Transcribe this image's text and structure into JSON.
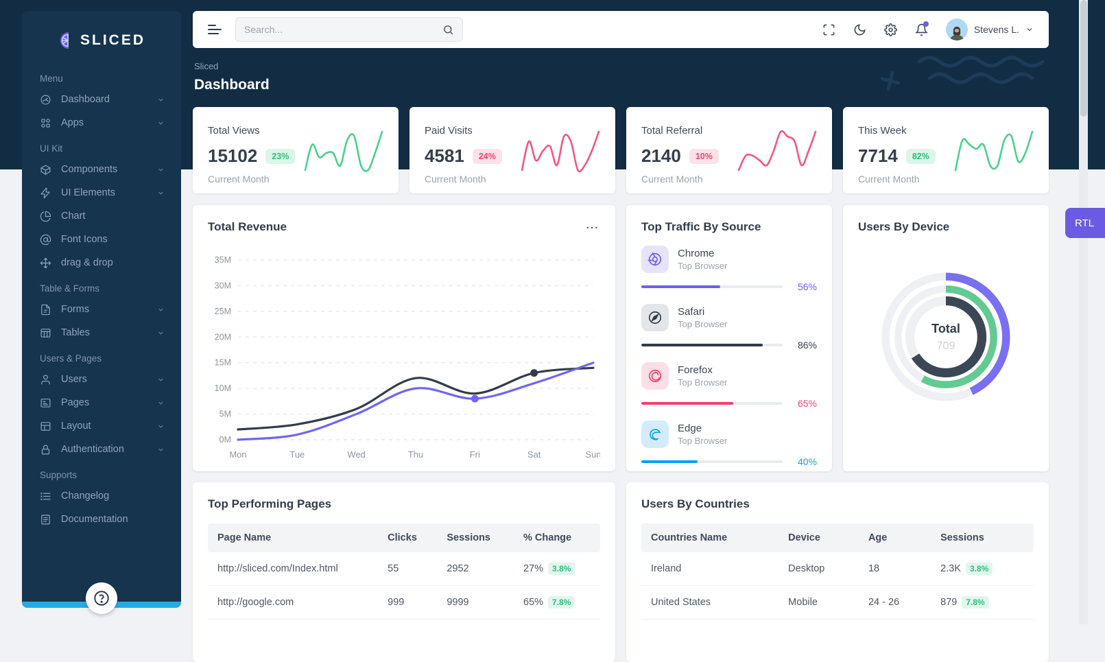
{
  "brand": {
    "name": "SLICED"
  },
  "sidebar": {
    "sections": [
      {
        "label": "Menu",
        "items": [
          {
            "label": "Dashboard",
            "icon": "dashboard-icon",
            "chevron": true
          },
          {
            "label": "Apps",
            "icon": "apps-icon",
            "chevron": true
          }
        ]
      },
      {
        "label": "UI Kit",
        "items": [
          {
            "label": "Components",
            "icon": "components-icon",
            "chevron": true
          },
          {
            "label": "UI Elements",
            "icon": "ui-elements-icon",
            "chevron": true
          },
          {
            "label": "Chart",
            "icon": "chart-icon",
            "chevron": false
          },
          {
            "label": "Font Icons",
            "icon": "font-icons-icon",
            "chevron": false
          },
          {
            "label": "drag & drop",
            "icon": "drag-drop-icon",
            "chevron": false
          }
        ]
      },
      {
        "label": "Table & Forms",
        "items": [
          {
            "label": "Forms",
            "icon": "forms-icon",
            "chevron": true
          },
          {
            "label": "Tables",
            "icon": "tables-icon",
            "chevron": true
          }
        ]
      },
      {
        "label": "Users & Pages",
        "items": [
          {
            "label": "Users",
            "icon": "users-icon",
            "chevron": true
          },
          {
            "label": "Pages",
            "icon": "pages-icon",
            "chevron": true
          },
          {
            "label": "Layout",
            "icon": "layout-icon",
            "chevron": true
          },
          {
            "label": "Authentication",
            "icon": "authentication-icon",
            "chevron": true
          }
        ]
      },
      {
        "label": "Supports",
        "items": [
          {
            "label": "Changelog",
            "icon": "changelog-icon",
            "chevron": false
          },
          {
            "label": "Documentation",
            "icon": "documentation-icon",
            "chevron": false
          }
        ]
      }
    ]
  },
  "topbar": {
    "search_placeholder": "Search...",
    "icons": [
      "fullscreen-icon",
      "moon-icon",
      "gear-icon",
      "bell-icon"
    ],
    "user_name": "Stevens L."
  },
  "breadcrumb": "Sliced",
  "page_title": "Dashboard",
  "rtl_label": "RTL",
  "colors": {
    "accent_purple": "#6e5fe8",
    "success_green": "#28c578",
    "danger_pink": "#f1426e",
    "dark_slate": "#323c48",
    "edge_blue": "#0b9ff0"
  },
  "stat_cards": [
    {
      "title": "Total Views",
      "value": "15102",
      "badge": "23%",
      "badge_type": "success",
      "caption": "Current Month",
      "spark_color": "#4bd08b",
      "spark": [
        2,
        8,
        5,
        6,
        6,
        3,
        9,
        10,
        3,
        2,
        6,
        11
      ]
    },
    {
      "title": "Paid Visits",
      "value": "4581",
      "badge": "24%",
      "badge_type": "danger",
      "caption": "Current Month",
      "spark_color": "#f4567d",
      "spark": [
        3,
        9,
        5,
        7,
        8,
        4,
        10,
        9,
        3,
        4,
        7,
        11
      ]
    },
    {
      "title": "Total Referral",
      "value": "2140",
      "badge": "10%",
      "badge_type": "danger",
      "caption": "Current Month",
      "spark_color": "#f4567d",
      "spark": [
        2,
        5,
        5,
        4,
        3,
        6,
        10,
        9,
        8,
        3,
        6,
        10
      ]
    },
    {
      "title": "This Week",
      "value": "7714",
      "badge": "82%",
      "badge_type": "success",
      "caption": "Current Month",
      "spark_color": "#4bd08b",
      "spark": [
        2,
        9,
        8,
        7,
        8,
        3,
        3,
        9,
        10,
        4,
        6,
        11
      ]
    }
  ],
  "chart_data": [
    {
      "type": "line",
      "title": "Total Revenue",
      "x": [
        "Mon",
        "Tue",
        "Wed",
        "Thu",
        "Fri",
        "Sat",
        "Sun"
      ],
      "ylabel": "",
      "ylim": [
        0,
        35
      ],
      "ytick_labels": [
        "0M",
        "5M",
        "10M",
        "15M",
        "20M",
        "25M",
        "30M",
        "35M"
      ],
      "grid": "dashed horizontal",
      "legend": "none",
      "series": [
        {
          "name": "series-dark",
          "color": "#323c48",
          "values": [
            2,
            3,
            6,
            12,
            9,
            13,
            14
          ],
          "marker_index": 5
        },
        {
          "name": "series-purple",
          "color": "#7165ee",
          "values": [
            0,
            1,
            5,
            10,
            8,
            11,
            15
          ],
          "marker_index": 4
        }
      ]
    },
    {
      "type": "radial",
      "title": "Users By Device",
      "center_label": "Total",
      "center_value": "709",
      "rings": [
        {
          "position": "outer",
          "percent": 43,
          "color": "#7a6ff0"
        },
        {
          "position": "middle",
          "percent": 58,
          "color": "#62ca92"
        },
        {
          "position": "inner",
          "percent": 66,
          "color": "#3b4754"
        }
      ]
    }
  ],
  "traffic": {
    "title": "Top Traffic By Source",
    "items": [
      {
        "name": "Chrome",
        "sub": "Top Browser",
        "percent": 56,
        "color": "#6e5fe8",
        "tile_bg": "#e6e3fb",
        "icon": "chrome-icon"
      },
      {
        "name": "Safari",
        "sub": "Top Browser",
        "percent": 86,
        "color": "#323c48",
        "tile_bg": "#e4e5e8",
        "icon": "safari-icon"
      },
      {
        "name": "Forefox",
        "sub": "Top Browser",
        "percent": 65,
        "color": "#f1426e",
        "tile_bg": "#fcdee6",
        "icon": "firefox-icon"
      },
      {
        "name": "Edge",
        "sub": "Top Browser",
        "percent": 40,
        "color": "#0b9ff0",
        "tile_bg": "#d3ecfc",
        "icon": "edge-icon"
      }
    ]
  },
  "pages_table": {
    "title": "Top Performing Pages",
    "headers": [
      "Page Name",
      "Clicks",
      "Sessions",
      "% Change"
    ],
    "rows": [
      {
        "cells": [
          "http://sliced.com/Index.html",
          "55",
          "2952",
          "27%"
        ],
        "badge": "3.8%"
      },
      {
        "cells": [
          "http://google.com",
          "999",
          "9999",
          "65%"
        ],
        "badge": "7.8%"
      }
    ]
  },
  "countries_table": {
    "title": "Users By Countries",
    "headers": [
      "Countries Name",
      "Device",
      "Age",
      "Sessions"
    ],
    "rows": [
      {
        "cells": [
          "Ireland",
          "Desktop",
          "18",
          "2.3K"
        ],
        "badge": "3.8%"
      },
      {
        "cells": [
          "United States",
          "Mobile",
          "24 - 26",
          "879"
        ],
        "badge": "7.8%"
      }
    ]
  },
  "sidebar_footer": {
    "help_icon": "help-icon"
  }
}
